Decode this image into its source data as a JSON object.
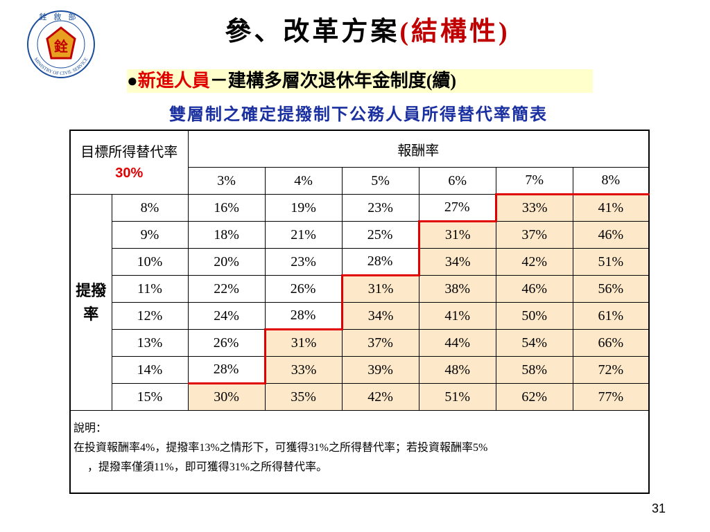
{
  "header": {
    "title": "參、改革方案",
    "title_suffix": "(結構性)",
    "bullet": "●",
    "section": "新進人員",
    "section_suffix": "－建構多層次退休年金制度(續)",
    "subtitle": "雙層制之確定提撥制下公務人員所得替代率簡表"
  },
  "logo": {
    "top_text": "銓敘部",
    "bottom_text": "MINISTRY OF CIVIL SERVICE",
    "emblem": "銓"
  },
  "table": {
    "corner_label": "目標所得替代率",
    "corner_target": "30%",
    "column_group": "報酬率",
    "columns": [
      "3%",
      "4%",
      "5%",
      "6%",
      "7%",
      "8%"
    ],
    "row_group": "提撥率",
    "rows": [
      {
        "label": "8%",
        "cells": [
          "16%",
          "19%",
          "23%",
          "27%",
          "33%",
          "41%"
        ]
      },
      {
        "label": "9%",
        "cells": [
          "18%",
          "21%",
          "25%",
          "31%",
          "37%",
          "46%"
        ]
      },
      {
        "label": "10%",
        "cells": [
          "20%",
          "23%",
          "28%",
          "34%",
          "42%",
          "51%"
        ]
      },
      {
        "label": "11%",
        "cells": [
          "22%",
          "26%",
          "31%",
          "38%",
          "46%",
          "56%"
        ]
      },
      {
        "label": "12%",
        "cells": [
          "24%",
          "28%",
          "34%",
          "41%",
          "50%",
          "61%"
        ]
      },
      {
        "label": "13%",
        "cells": [
          "26%",
          "31%",
          "37%",
          "44%",
          "54%",
          "66%"
        ]
      },
      {
        "label": "14%",
        "cells": [
          "28%",
          "33%",
          "39%",
          "48%",
          "58%",
          "72%"
        ]
      },
      {
        "label": "15%",
        "cells": [
          "30%",
          "35%",
          "42%",
          "51%",
          "62%",
          "77%"
        ]
      }
    ]
  },
  "note": {
    "heading": "說明：",
    "lines": [
      "在投資報酬率4%，提撥率13%之情形下，可獲得31%之所得替代率；若投資報酬率5%",
      "，提撥率僅須11%，即可獲得31%之所得替代率。"
    ]
  },
  "page_number": "31"
}
